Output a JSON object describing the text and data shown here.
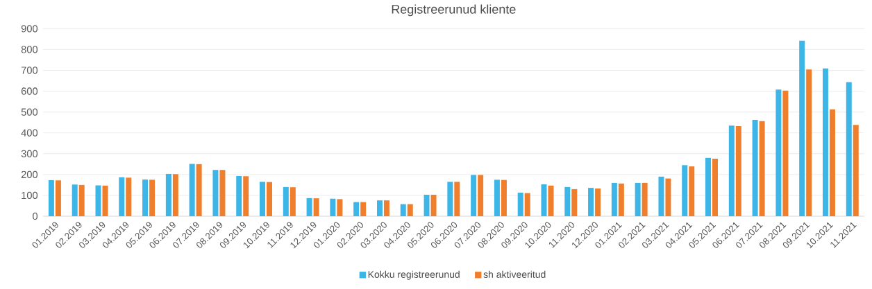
{
  "chart_data": {
    "type": "bar",
    "title": "Registreerunud kliente",
    "categories": [
      "01.2019",
      "02.2019",
      "03.2019",
      "04.2019",
      "05.2019",
      "06.2019",
      "07.2019",
      "08.2019",
      "09.2019",
      "10.2019",
      "11.2019",
      "12.2019",
      "01.2020",
      "02.2020",
      "03.2020",
      "04.2020",
      "05.2020",
      "06.2020",
      "07.2020",
      "08.2020",
      "09.2020",
      "10.2020",
      "11.2020",
      "12.2020",
      "01.2021",
      "02.2021",
      "03.2021",
      "04.2021",
      "05.2021",
      "06.2021",
      "07.2021",
      "08.2021",
      "09.2021",
      "10.2021",
      "11.2021"
    ],
    "series": [
      {
        "name": "Kokku registreerunud",
        "color": "#3db5e6",
        "values": [
          173,
          152,
          148,
          187,
          176,
          203,
          251,
          222,
          193,
          165,
          140,
          87,
          84,
          68,
          76,
          58,
          103,
          165,
          198,
          175,
          113,
          153,
          140,
          136,
          160,
          160,
          190,
          245,
          280,
          435,
          462,
          608,
          842,
          709,
          643
        ]
      },
      {
        "name": "sh aktiveeritud",
        "color": "#f07f2d",
        "values": [
          172,
          150,
          147,
          185,
          175,
          202,
          250,
          222,
          192,
          164,
          139,
          86,
          82,
          68,
          76,
          58,
          103,
          165,
          198,
          174,
          111,
          147,
          130,
          133,
          157,
          160,
          181,
          239,
          276,
          432,
          456,
          603,
          704,
          513,
          438
        ]
      }
    ],
    "ylim": [
      0,
      900
    ],
    "yticks": [
      0,
      100,
      200,
      300,
      400,
      500,
      600,
      700,
      800,
      900
    ],
    "grid": "y",
    "legend": "bottom"
  }
}
